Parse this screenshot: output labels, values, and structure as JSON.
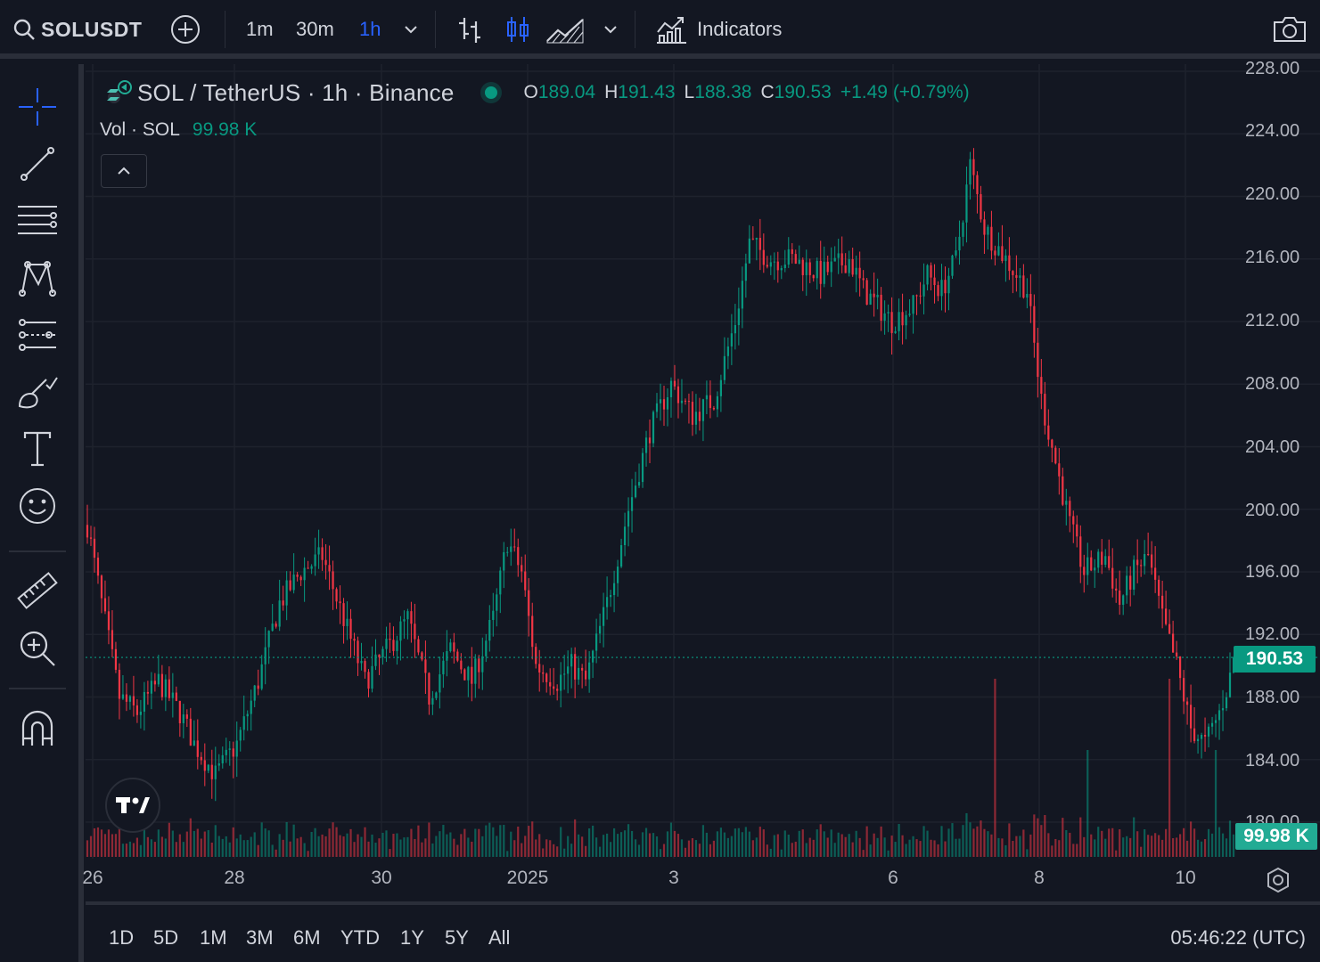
{
  "toolbar": {
    "symbol": "SOLUSDT",
    "intervals": [
      "1m",
      "30m",
      "1h"
    ],
    "active_interval": "1h",
    "indicators_label": "Indicators"
  },
  "left_tools": [
    "crosshair-icon",
    "trend-line-icon",
    "fib-retracement-icon",
    "pattern-icon",
    "prediction-icon",
    "brush-icon",
    "text-icon",
    "emoji-icon",
    "ruler-icon",
    "zoom-in-icon",
    "magnet-icon"
  ],
  "legend": {
    "title": "SOL / TetherUS · 1h · Binance",
    "open_label": "O",
    "open": "189.04",
    "high_label": "H",
    "high": "191.43",
    "low_label": "L",
    "low": "188.38",
    "close_label": "C",
    "close": "190.53",
    "change": "+1.49 (+0.79%)",
    "vol_label": "Vol · SOL",
    "vol_value": "99.98 K"
  },
  "price_axis": {
    "labels": [
      "228.00",
      "224.00",
      "220.00",
      "216.00",
      "212.00",
      "208.00",
      "204.00",
      "200.00",
      "196.00",
      "192.00",
      "188.00",
      "184.00",
      "180.00"
    ],
    "last_price": "190.53",
    "last_volume": "99.98 K"
  },
  "time_axis": {
    "labels": [
      "26",
      "28",
      "30",
      "2025",
      "3",
      "6",
      "8",
      "10"
    ]
  },
  "bottom_bar": {
    "ranges": [
      "1D",
      "5D",
      "1M",
      "3M",
      "6M",
      "YTD",
      "1Y",
      "5Y",
      "All"
    ],
    "clock": "05:46:22 (UTC)"
  },
  "colors": {
    "up": "#089981",
    "down": "#f23645",
    "background": "#131722",
    "accent": "#2962ff"
  },
  "chart_data": {
    "type": "bar",
    "interval": "1h",
    "ylim": [
      180,
      228
    ],
    "price_path": [
      [
        0,
        199
      ],
      [
        4,
        194
      ],
      [
        9,
        188
      ],
      [
        14,
        187
      ],
      [
        20,
        189
      ],
      [
        26,
        187
      ],
      [
        30,
        185
      ],
      [
        36,
        183
      ],
      [
        42,
        185
      ],
      [
        48,
        189
      ],
      [
        54,
        194
      ],
      [
        60,
        196
      ],
      [
        66,
        197
      ],
      [
        72,
        193
      ],
      [
        78,
        189
      ],
      [
        84,
        191
      ],
      [
        90,
        193
      ],
      [
        96,
        188
      ],
      [
        102,
        191
      ],
      [
        108,
        189
      ],
      [
        114,
        193
      ],
      [
        118,
        198
      ],
      [
        122,
        196
      ],
      [
        126,
        190
      ],
      [
        132,
        189
      ],
      [
        136,
        190
      ],
      [
        140,
        189
      ],
      [
        146,
        194
      ],
      [
        152,
        200
      ],
      [
        158,
        205
      ],
      [
        164,
        208
      ],
      [
        170,
        206
      ],
      [
        176,
        207
      ],
      [
        182,
        212
      ],
      [
        186,
        217
      ],
      [
        192,
        216
      ],
      [
        198,
        216
      ],
      [
        206,
        215
      ],
      [
        214,
        216
      ],
      [
        218,
        214
      ],
      [
        222,
        213
      ],
      [
        226,
        212
      ],
      [
        232,
        213
      ],
      [
        236,
        215
      ],
      [
        240,
        214
      ],
      [
        244,
        216
      ],
      [
        248,
        222
      ],
      [
        252,
        218
      ],
      [
        258,
        216
      ],
      [
        264,
        214
      ],
      [
        268,
        207
      ],
      [
        272,
        203
      ],
      [
        276,
        199
      ],
      [
        280,
        196
      ],
      [
        286,
        197
      ],
      [
        290,
        194
      ],
      [
        294,
        196
      ],
      [
        298,
        197
      ],
      [
        302,
        193
      ],
      [
        306,
        190
      ],
      [
        310,
        186
      ],
      [
        314,
        185
      ],
      [
        318,
        187
      ],
      [
        322,
        190
      ]
    ],
    "bar_count": 323
  }
}
